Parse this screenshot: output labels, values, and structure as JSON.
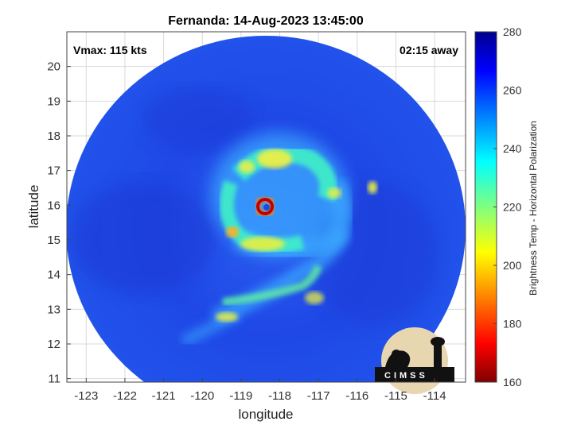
{
  "chart_data": {
    "type": "heatmap",
    "title": "Fernanda: 14-Aug-2023 13:45:00",
    "annotations": {
      "vmax": "Vmax: 115 kts",
      "time_away": "02:15 away"
    },
    "xlabel": "longitude",
    "ylabel": "latitude",
    "xlim": [
      -123.5,
      -113.2
    ],
    "ylim": [
      10.9,
      21.0
    ],
    "x_ticks": [
      -123,
      -122,
      -121,
      -120,
      -119,
      -118,
      -117,
      -116,
      -115,
      -114
    ],
    "y_ticks": [
      11,
      12,
      13,
      14,
      15,
      16,
      17,
      18,
      19,
      20
    ],
    "grid": true,
    "colorbar": {
      "label": "Brightness Temp - Horizontal Polarization",
      "range": [
        160,
        280
      ],
      "ticks": [
        160,
        180,
        200,
        220,
        240,
        260,
        280
      ],
      "colormap": "jet"
    },
    "storm_center": {
      "lon": -118.3,
      "lat": 15.9
    },
    "features": [
      {
        "name": "eye",
        "lon": -118.25,
        "lat": 15.88,
        "value": 255
      },
      {
        "name": "eyewall",
        "lon": -118.3,
        "lat": 15.92,
        "value": 168
      },
      {
        "name": "band",
        "lon": -118.9,
        "lat": 15.15,
        "value": 195
      },
      {
        "name": "cell",
        "lon": -115.55,
        "lat": 16.45,
        "value": 215
      }
    ],
    "swath_background_value": 262,
    "logo_text": "CIMSS"
  },
  "colors": {
    "swath": "#1f48e6",
    "grid": "#d9d9d9",
    "cb_stops": [
      "#7f0000",
      "#ff0000",
      "#ff8000",
      "#ffff00",
      "#80ff80",
      "#00ffff",
      "#0080ff",
      "#0000ff",
      "#00008f"
    ]
  }
}
